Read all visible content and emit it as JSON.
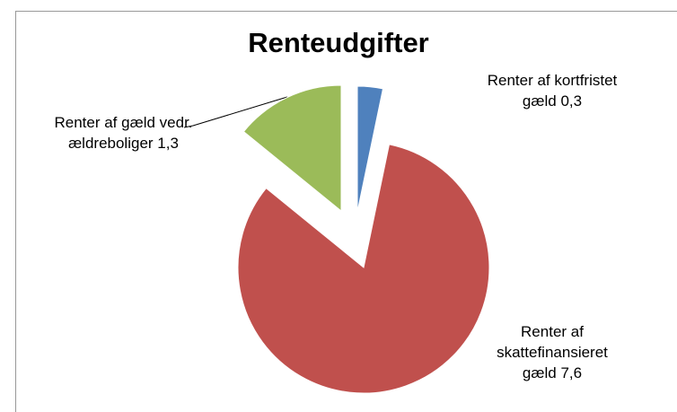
{
  "chart_data": {
    "type": "pie",
    "title": "Renteudgifter",
    "categories": [
      "Renter af kortfristet gæld",
      "Renter af skattefinansieret gæld",
      "Renter af gæld vedr. ældreboliger"
    ],
    "values": [
      0.3,
      7.6,
      1.3
    ],
    "value_labels": [
      "0,3",
      "7,6",
      "1,3"
    ],
    "colors": [
      "#4f81bd",
      "#c0504d",
      "#9bbb59"
    ]
  }
}
